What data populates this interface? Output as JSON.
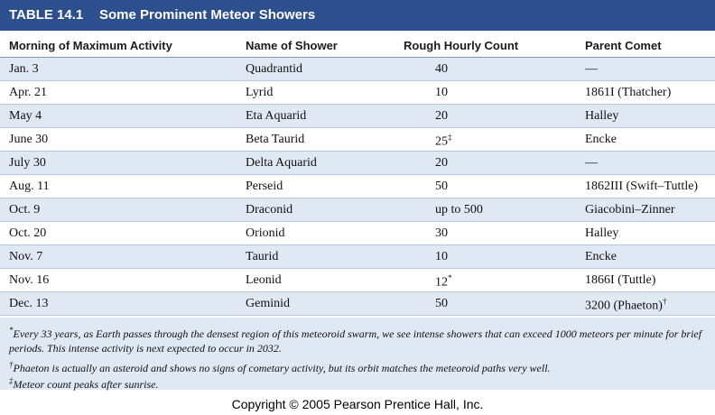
{
  "header": {
    "label": "TABLE 14.1",
    "title": "Some Prominent Meteor Showers"
  },
  "table": {
    "columns": [
      "Morning of Maximum Activity",
      "Name of Shower",
      "Rough Hourly Count",
      "Parent Comet"
    ],
    "rows": [
      [
        "Jan. 3",
        "Quadrantid",
        "40",
        "—"
      ],
      [
        "Apr. 21",
        "Lyrid",
        "10",
        "1861I (Thatcher)"
      ],
      [
        "May 4",
        "Eta Aquarid",
        "20",
        "Halley"
      ],
      [
        "June 30",
        "Beta Taurid",
        {
          "text": "25",
          "note": "‡"
        },
        "Encke"
      ],
      [
        "July 30",
        "Delta Aquarid",
        "20",
        "—"
      ],
      [
        "Aug. 11",
        "Perseid",
        "50",
        "1862III (Swift–Tuttle)"
      ],
      [
        "Oct. 9",
        "Draconid",
        "up to 500",
        "Giacobini–Zinner"
      ],
      [
        "Oct. 20",
        "Orionid",
        "30",
        "Halley"
      ],
      [
        "Nov. 7",
        "Taurid",
        "10",
        "Encke"
      ],
      [
        "Nov. 16",
        "Leonid",
        {
          "text": "12",
          "note": "*"
        },
        "1866I (Tuttle)"
      ],
      [
        "Dec. 13",
        "Geminid",
        "50",
        {
          "text": "3200 (Phaeton)",
          "note": "†"
        }
      ]
    ]
  },
  "footnotes": [
    {
      "mark": "*",
      "text": "Every 33 years, as Earth passes through the densest region of this meteoroid swarm, we see intense showers that can exceed 1000 meteors per minute for brief periods. This intense activity is next expected to occur in 2032."
    },
    {
      "mark": "†",
      "text": "Phaeton is actually an asteroid and shows no signs of cometary activity, but its orbit matches the meteoroid paths very well."
    },
    {
      "mark": "‡",
      "text": "Meteor count peaks after sunrise."
    }
  ],
  "copyright": "Copyright © 2005 Pearson Prentice Hall, Inc."
}
